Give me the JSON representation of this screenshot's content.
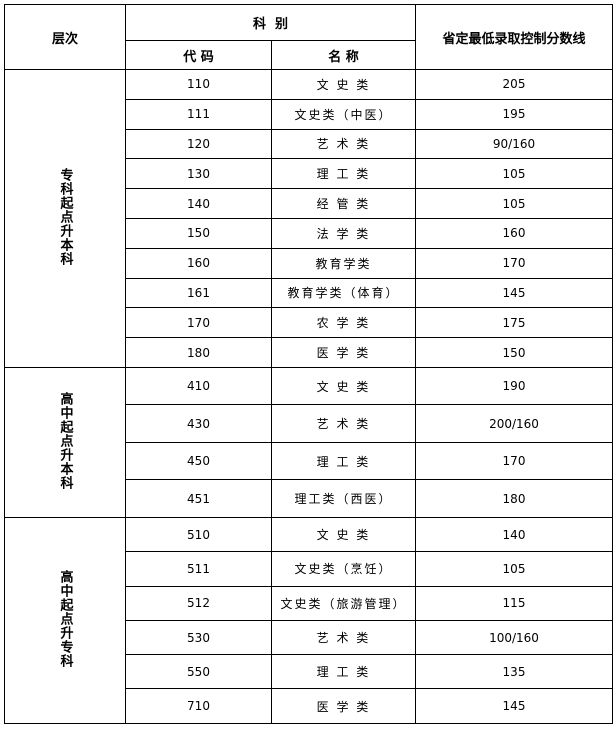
{
  "header": {
    "level": "层次",
    "category": "科  别",
    "code": "代 码",
    "name": "名 称",
    "score": "省定最低录取控制分数线"
  },
  "groups": [
    {
      "level": "专科起点升本科",
      "rows": [
        {
          "code": "110",
          "name": "文 史 类",
          "score": "205"
        },
        {
          "code": "111",
          "name": "文史类（中医）",
          "score": "195"
        },
        {
          "code": "120",
          "name": "艺 术 类",
          "score": "90/160"
        },
        {
          "code": "130",
          "name": "理 工 类",
          "score": "105"
        },
        {
          "code": "140",
          "name": "经 管 类",
          "score": "105"
        },
        {
          "code": "150",
          "name": "法 学 类",
          "score": "160"
        },
        {
          "code": "160",
          "name": "教育学类",
          "score": "170"
        },
        {
          "code": "161",
          "name": "教育学类（体育）",
          "score": "145"
        },
        {
          "code": "170",
          "name": "农 学 类",
          "score": "175"
        },
        {
          "code": "180",
          "name": "医 学 类",
          "score": "150"
        }
      ]
    },
    {
      "level": "高中起点升本科",
      "rows": [
        {
          "code": "410",
          "name": "文 史 类",
          "score": "190"
        },
        {
          "code": "430",
          "name": "艺 术 类",
          "score": "200/160"
        },
        {
          "code": "450",
          "name": "理 工 类",
          "score": "170"
        },
        {
          "code": "451",
          "name": "理工类（西医）",
          "score": "180"
        }
      ]
    },
    {
      "level": "高中起点升专科",
      "rows": [
        {
          "code": "510",
          "name": "文 史 类",
          "score": "140"
        },
        {
          "code": "511",
          "name": "文史类（烹饪）",
          "score": "105"
        },
        {
          "code": "512",
          "name": "文史类（旅游管理）",
          "score": "115"
        },
        {
          "code": "530",
          "name": "艺 术 类",
          "score": "100/160"
        },
        {
          "code": "550",
          "name": "理 工 类",
          "score": "135"
        },
        {
          "code": "710",
          "name": "医 学 类",
          "score": "145"
        }
      ]
    }
  ]
}
